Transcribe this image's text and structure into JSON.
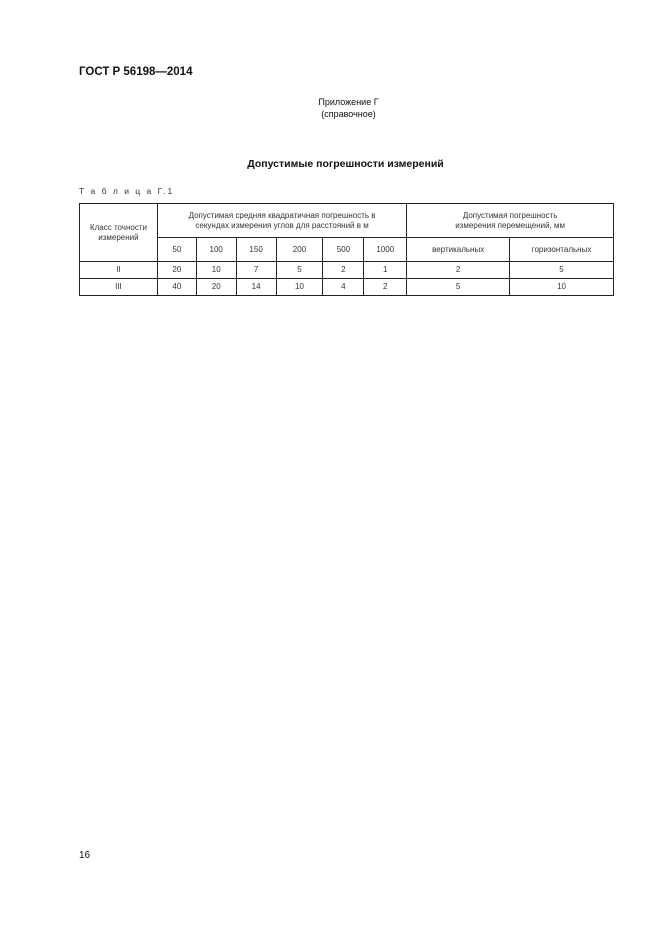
{
  "header": "ГОСТ Р 56198—2014",
  "appendix": {
    "line1": "Приложение Г",
    "line2": "(справочное)"
  },
  "title": "Допустимые погрешности измерений",
  "table_caption": "Т а б л и ц а  Г.1",
  "table": {
    "col0": "Класс точности измерений",
    "group1": "Допустимая средняя квадратичная погрешность в секундах измерения углов для расстояний в м",
    "group2": "Допустимая погрешность измерения перемещений, мм",
    "sub": [
      "50",
      "100",
      "150",
      "200",
      "500",
      "1000",
      "вертикальных",
      "горизонтальных"
    ],
    "rows": [
      [
        "II",
        "20",
        "10",
        "7",
        "5",
        "2",
        "1",
        "2",
        "5"
      ],
      [
        "III",
        "40",
        "20",
        "14",
        "10",
        "4",
        "2",
        "5",
        "10"
      ]
    ]
  },
  "page_number": "16"
}
